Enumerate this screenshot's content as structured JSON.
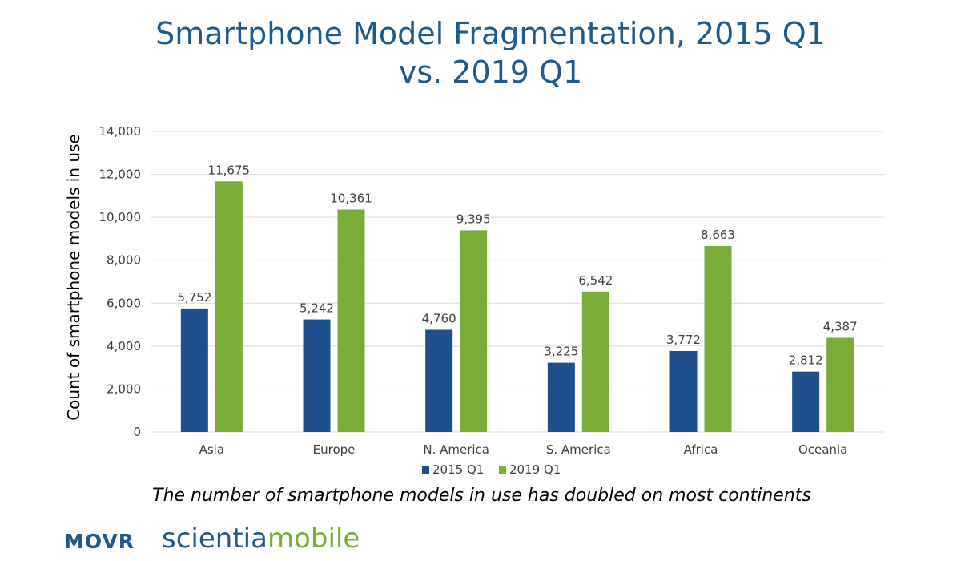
{
  "title_line1": "Smartphone Model Fragmentation, 2015 Q1",
  "title_line2": "vs. 2019 Q1",
  "caption": "The number of smartphone models in use has doubled on most continents",
  "logos": {
    "movr": "MOVR",
    "scientia_part1": "scientia",
    "scientia_part2": "mobile"
  },
  "colors": {
    "series_2015": "#1f4e8c",
    "series_2019": "#7aad38",
    "title": "#1f5a8c",
    "grid": "#d9d9d9"
  },
  "chart_data": {
    "type": "bar",
    "title": "Smartphone Model Fragmentation, 2015 Q1 vs. 2019 Q1",
    "xlabel": "",
    "ylabel": "Count of smartphone models in use",
    "categories": [
      "Asia",
      "Europe",
      "N. America",
      "S. America",
      "Africa",
      "Oceania"
    ],
    "series": [
      {
        "name": "2015 Q1",
        "values": [
          5752,
          5242,
          4760,
          3225,
          3772,
          2812
        ]
      },
      {
        "name": "2019 Q1",
        "values": [
          11675,
          10361,
          9395,
          6542,
          8663,
          4387
        ]
      }
    ],
    "ylim": [
      0,
      14000
    ],
    "yticks": [
      0,
      2000,
      4000,
      6000,
      8000,
      10000,
      12000,
      14000
    ],
    "ytick_labels": [
      "0",
      "2,000",
      "4,000",
      "6,000",
      "8,000",
      "10,000",
      "12,000",
      "14,000"
    ],
    "data_labels": true,
    "grid": true,
    "legend_position": "bottom"
  }
}
